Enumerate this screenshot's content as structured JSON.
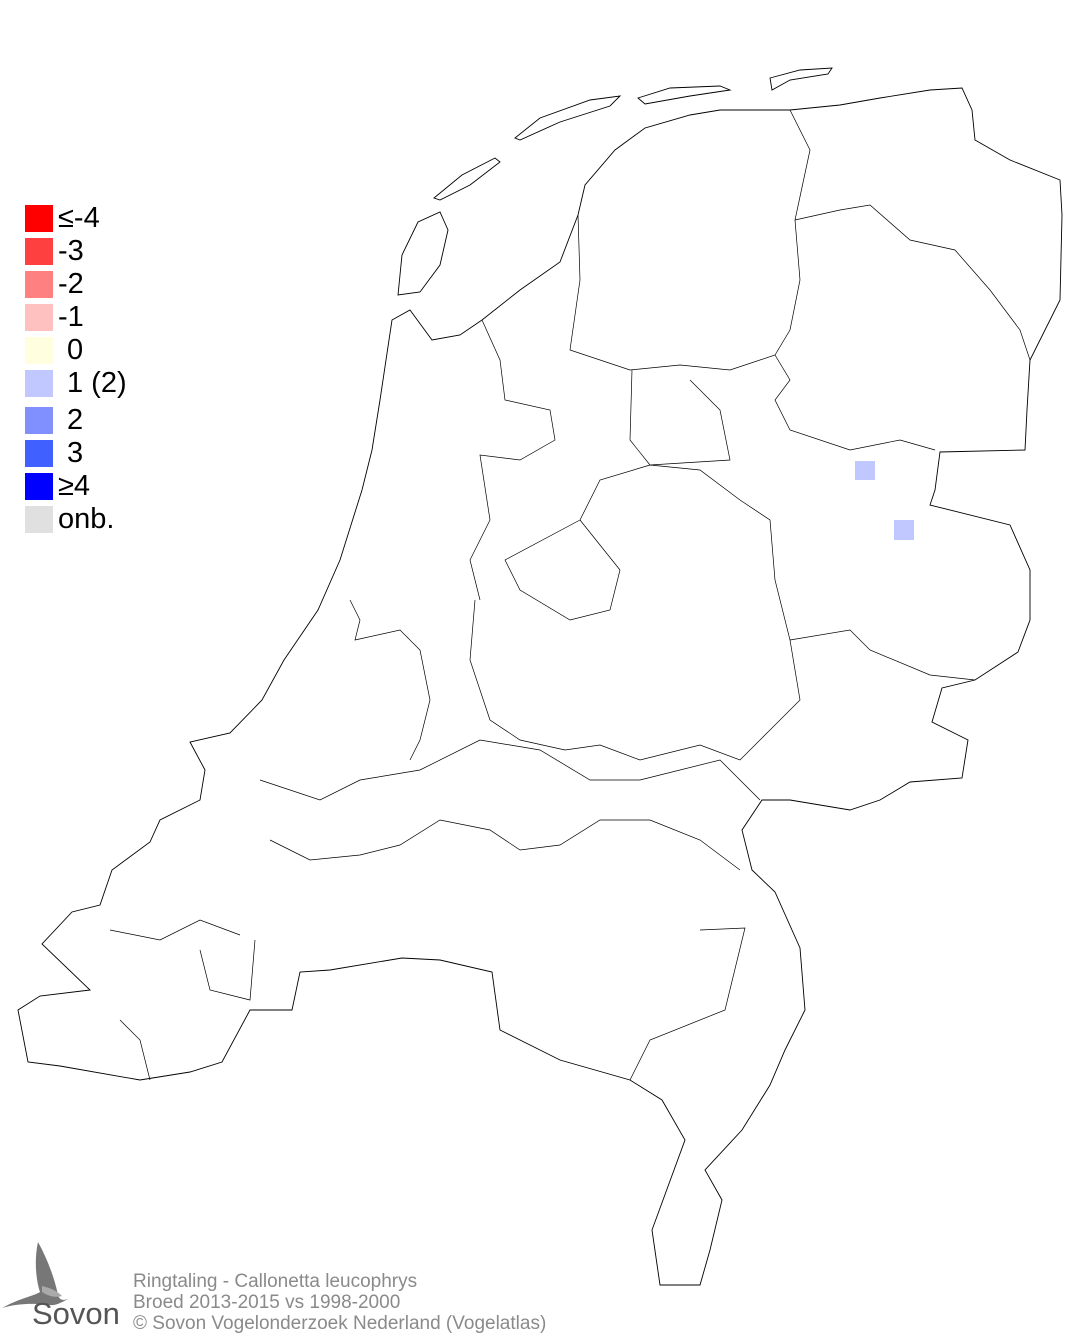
{
  "legend": {
    "items": [
      {
        "label": "≤-4",
        "color": "#ff0000"
      },
      {
        "label": "-3",
        "color": "#ff4040"
      },
      {
        "label": "-2",
        "color": "#ff8080"
      },
      {
        "label": "-1",
        "color": "#ffc0c0"
      },
      {
        "label": "0",
        "color": "#ffffe0"
      },
      {
        "label": "1 (2)",
        "color": "#c0c8ff"
      },
      {
        "label": "2",
        "color": "#8090ff"
      },
      {
        "label": "3",
        "color": "#4060ff"
      },
      {
        "label": "≥4",
        "color": "#0000ff"
      },
      {
        "label": "onb.",
        "color": "#e0e0e0"
      }
    ]
  },
  "map": {
    "cells": [
      {
        "class": "1 (2)",
        "color": "#c0c8ff"
      },
      {
        "class": "1 (2)",
        "color": "#c0c8ff"
      }
    ]
  },
  "footer": {
    "species": "Ringtaling - Callonetta leucophrys",
    "period": "Broed 2013-2015 vs 1998-2000",
    "copyright": "© Sovon Vogelonderzoek Nederland (Vogelatlas)"
  },
  "logo": {
    "text": "Sovon"
  }
}
